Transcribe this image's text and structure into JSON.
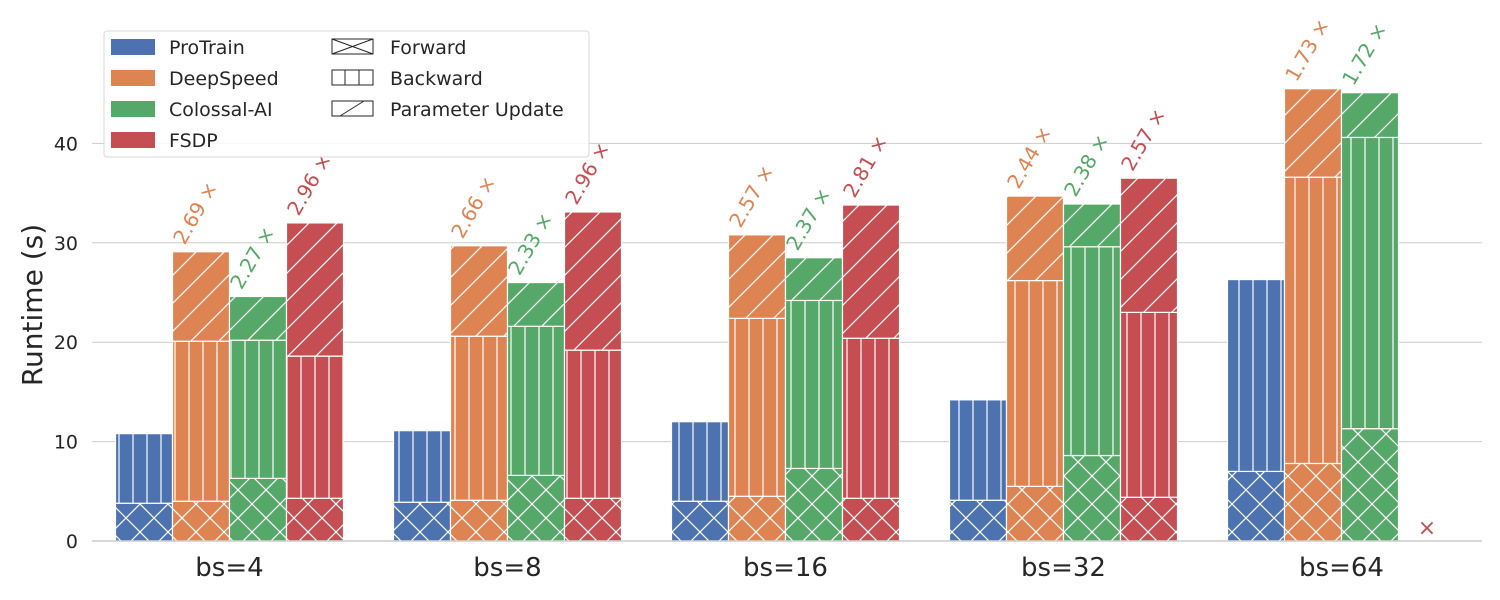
{
  "chart_data": {
    "type": "bar",
    "subtype": "grouped-stacked",
    "title": "",
    "xlabel": "",
    "ylabel": "Runtime (s)",
    "ylim": [
      0,
      50
    ],
    "yticks": [
      0,
      10,
      20,
      30,
      40
    ],
    "grid": "horizontal",
    "legend_position": "top-left",
    "categories": [
      "bs=4",
      "bs=8",
      "bs=16",
      "bs=32",
      "bs=64"
    ],
    "stages": [
      {
        "name": "Forward",
        "hatch": "cross"
      },
      {
        "name": "Backward",
        "hatch": "vertical"
      },
      {
        "name": "Parameter Update",
        "hatch": "diagonal"
      }
    ],
    "series": [
      {
        "name": "ProTrain",
        "color": "#4c72b0",
        "forward": [
          3.8,
          3.9,
          4.0,
          4.1,
          7.0
        ],
        "backward": [
          7.0,
          7.2,
          8.0,
          10.1,
          19.3
        ],
        "update": [
          0,
          0,
          0,
          0,
          0
        ],
        "totals": [
          10.8,
          11.1,
          12.0,
          14.2,
          26.3
        ],
        "speedup": [
          "",
          "",
          "",
          "",
          ""
        ]
      },
      {
        "name": "DeepSpeed",
        "color": "#dd8452",
        "forward": [
          4.0,
          4.1,
          4.5,
          5.5,
          7.8
        ],
        "backward": [
          16.1,
          16.5,
          17.9,
          20.7,
          28.8
        ],
        "update": [
          9.0,
          9.1,
          8.4,
          8.5,
          8.9
        ],
        "totals": [
          29.1,
          29.7,
          30.8,
          34.7,
          45.5
        ],
        "speedup": [
          "2.69 ×",
          "2.66 ×",
          "2.57 ×",
          "2.44 ×",
          "1.73 ×"
        ]
      },
      {
        "name": "Colossal-AI",
        "color": "#55a868",
        "forward": [
          6.3,
          6.6,
          7.3,
          8.6,
          11.3
        ],
        "backward": [
          13.9,
          15.0,
          16.9,
          21.0,
          29.3
        ],
        "update": [
          4.4,
          4.4,
          4.3,
          4.3,
          4.5
        ],
        "totals": [
          24.6,
          26.0,
          28.5,
          33.9,
          45.1
        ],
        "speedup": [
          "2.27 ×",
          "2.33 ×",
          "2.37 ×",
          "2.38 ×",
          "1.72 ×"
        ]
      },
      {
        "name": "FSDP",
        "color": "#c44e52",
        "forward": [
          4.3,
          4.3,
          4.3,
          4.4,
          null
        ],
        "backward": [
          14.3,
          14.9,
          16.1,
          18.6,
          null
        ],
        "update": [
          13.4,
          13.9,
          13.4,
          13.5,
          null
        ],
        "totals": [
          32.0,
          33.1,
          33.8,
          36.5,
          null
        ],
        "speedup": [
          "2.96 ×",
          "2.96 ×",
          "2.81 ×",
          "2.57 ×",
          ""
        ]
      }
    ],
    "failed_marker": {
      "series": "FSDP",
      "category": "bs=64",
      "symbol": "×"
    }
  }
}
